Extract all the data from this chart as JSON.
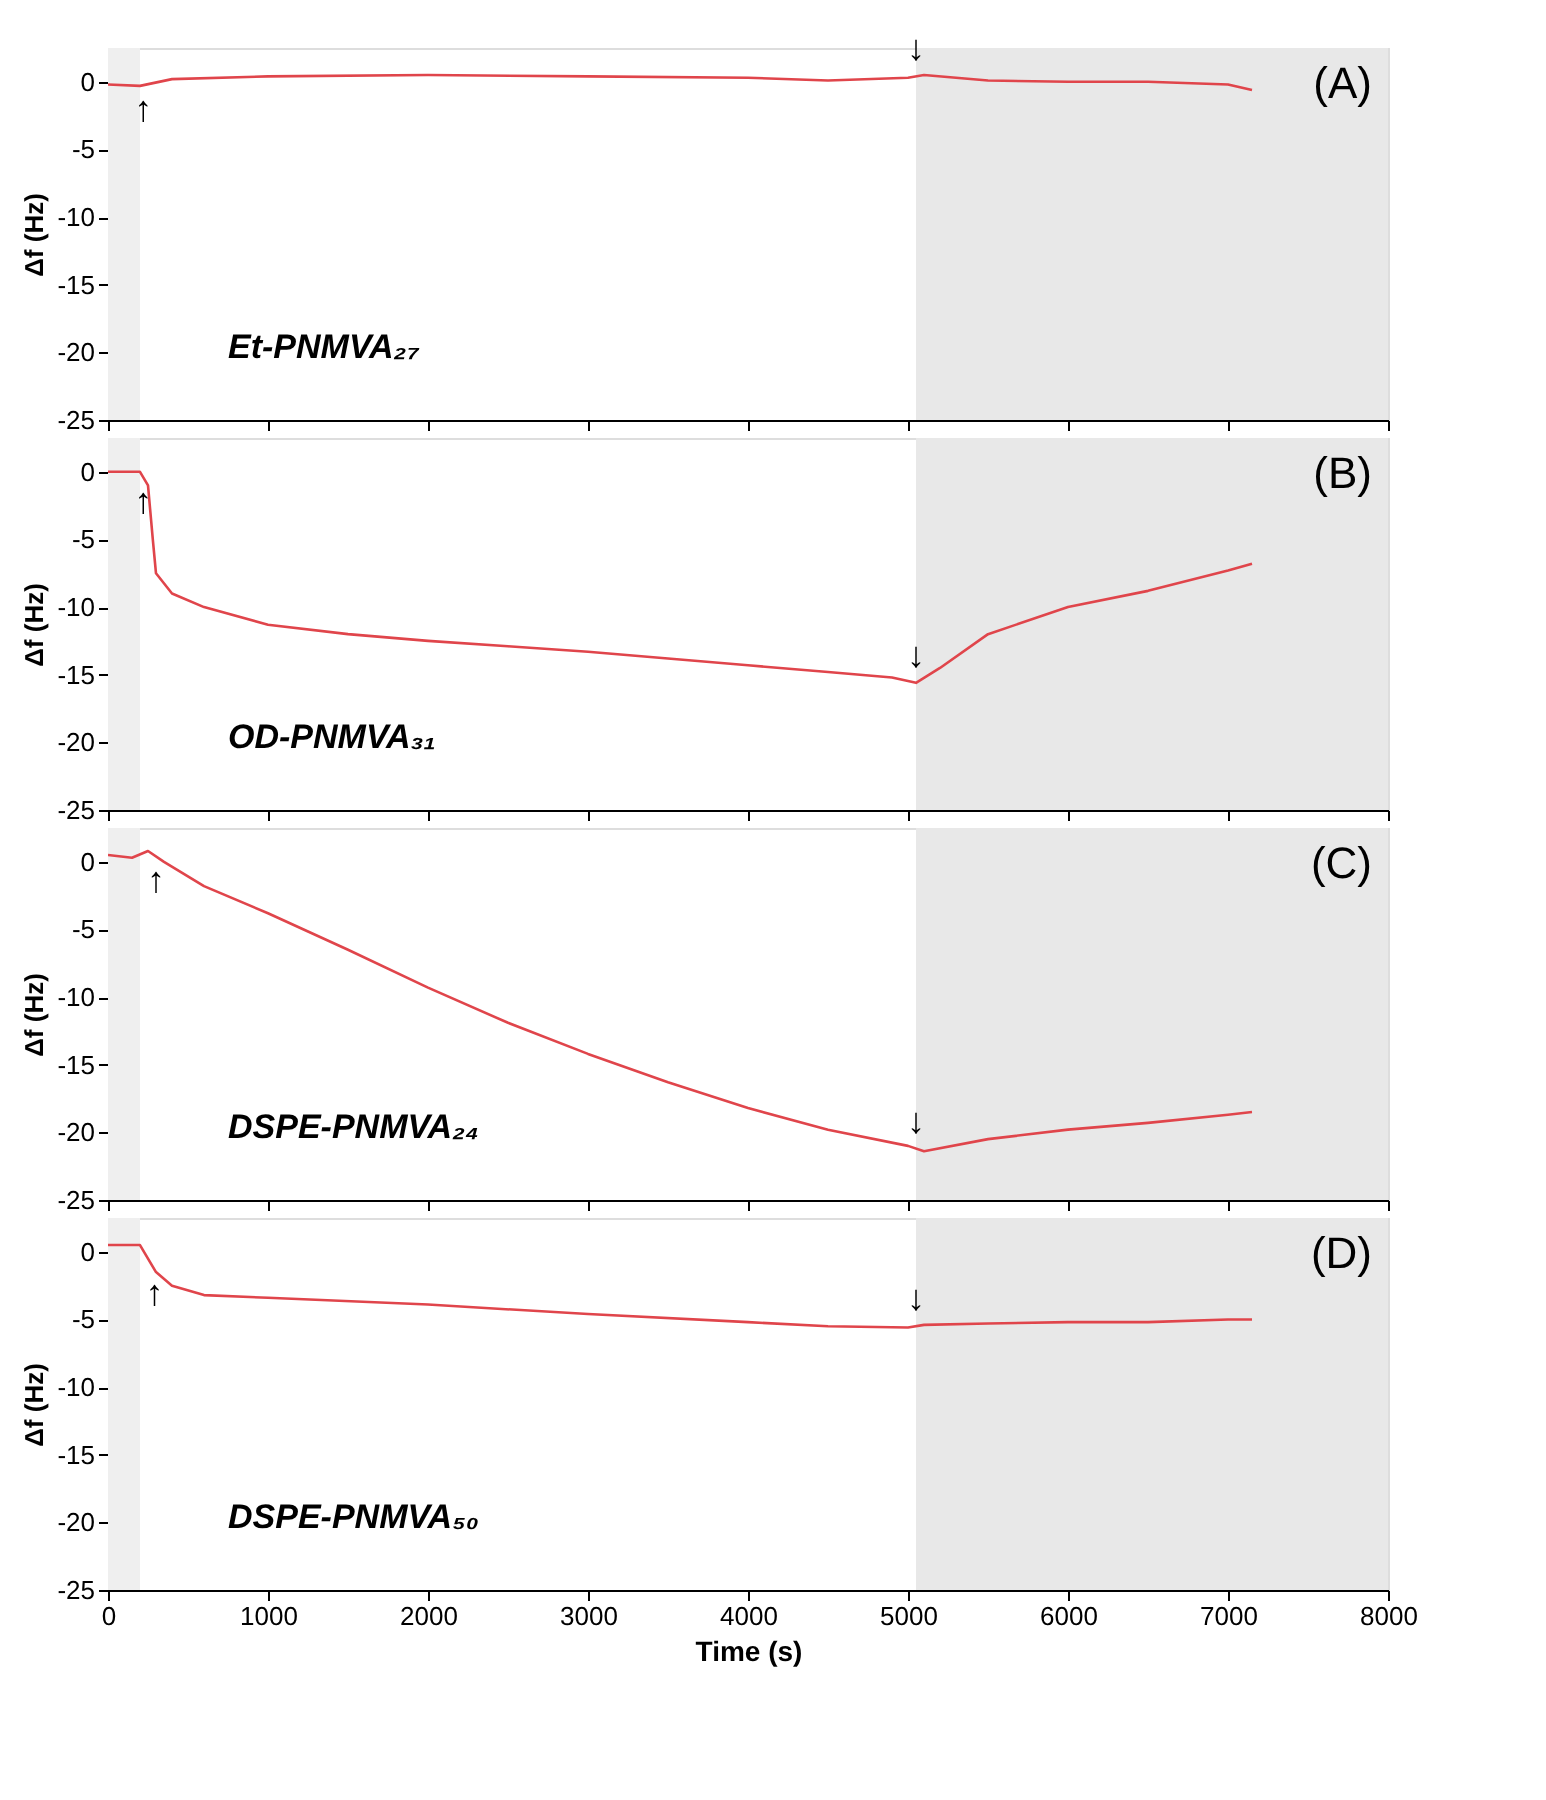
{
  "chart_data": [
    {
      "type": "line",
      "ylabel": "Δf (Hz)",
      "xlim": [
        0,
        8000
      ],
      "xticks": [
        0,
        1000,
        2000,
        3000,
        4000,
        5000,
        6000,
        7000,
        8000
      ],
      "ylim": [
        -25,
        2.5
      ],
      "yticks": [
        -25,
        -20,
        -15,
        -10,
        -5,
        0
      ],
      "tick_labels": "y",
      "grid": false,
      "annotations": [
        "(A)",
        {
          "text": "↑",
          "x": 220,
          "y": -0.25
        },
        {
          "text": "↓",
          "x": 5050,
          "y": 0.4
        }
      ],
      "bands": [
        {
          "axis": "x",
          "from": 0,
          "to": 200,
          "color": "#efefef"
        },
        {
          "axis": "x",
          "from": 5050,
          "to": 8000,
          "color": "#e8e8e8"
        }
      ],
      "series": [
        {
          "name": "Et-PNMVA₂₇",
          "color": "#e0454b",
          "x": [
            0,
            200,
            400,
            1000,
            2000,
            3000,
            4000,
            4500,
            5000,
            5100,
            5500,
            6000,
            6500,
            7000,
            7150
          ],
          "values": [
            -0.2,
            -0.3,
            0.2,
            0.4,
            0.5,
            0.4,
            0.3,
            0.1,
            0.3,
            0.5,
            0.1,
            0,
            0,
            -0.2,
            -0.6
          ]
        }
      ]
    },
    {
      "type": "line",
      "ylabel": "Δf (Hz)",
      "xlim": [
        0,
        8000
      ],
      "xticks": [
        0,
        1000,
        2000,
        3000,
        4000,
        5000,
        6000,
        7000,
        8000
      ],
      "ylim": [
        -25,
        2.5
      ],
      "yticks": [
        -25,
        -20,
        -15,
        -10,
        -5,
        0
      ],
      "tick_labels": "y",
      "grid": false,
      "annotations": [
        "(B)",
        {
          "text": "↑",
          "x": 220,
          "y": -0.4
        },
        {
          "text": "↓",
          "x": 5050,
          "y": -15.6
        }
      ],
      "bands": [
        {
          "axis": "x",
          "from": 0,
          "to": 200,
          "color": "#efefef"
        },
        {
          "axis": "x",
          "from": 5050,
          "to": 8000,
          "color": "#e8e8e8"
        }
      ],
      "series": [
        {
          "name": "OD-PNMVA₃₁",
          "color": "#e0454b",
          "x": [
            0,
            200,
            250,
            280,
            300,
            400,
            600,
            1000,
            1500,
            2000,
            2500,
            3000,
            3500,
            4000,
            4500,
            4900,
            5050,
            5200,
            5500,
            6000,
            6500,
            7000,
            7150
          ],
          "values": [
            0,
            0,
            -1,
            -5,
            -7.5,
            -9,
            -10,
            -11.3,
            -12,
            -12.5,
            -12.9,
            -13.3,
            -13.8,
            -14.3,
            -14.8,
            -15.2,
            -15.6,
            -14.5,
            -12,
            -10,
            -8.8,
            -7.3,
            -6.8
          ]
        }
      ]
    },
    {
      "type": "line",
      "ylabel": "Δf (Hz)",
      "xlim": [
        0,
        8000
      ],
      "xticks": [
        0,
        1000,
        2000,
        3000,
        4000,
        5000,
        6000,
        7000,
        8000
      ],
      "ylim": [
        -25,
        2.5
      ],
      "yticks": [
        -25,
        -20,
        -15,
        -10,
        -5,
        0
      ],
      "tick_labels": "y",
      "grid": false,
      "annotations": [
        "(C)",
        {
          "text": "↑",
          "x": 300,
          "y": 0.4
        },
        {
          "text": "↓",
          "x": 5050,
          "y": -21.2
        }
      ],
      "bands": [
        {
          "axis": "x",
          "from": 0,
          "to": 200,
          "color": "#efefef"
        },
        {
          "axis": "x",
          "from": 5050,
          "to": 8000,
          "color": "#e8e8e8"
        }
      ],
      "series": [
        {
          "name": "DSPE-PNMVA₂₄",
          "color": "#e0454b",
          "x": [
            0,
            150,
            250,
            350,
            600,
            1000,
            1500,
            2000,
            2500,
            3000,
            3500,
            4000,
            4500,
            5000,
            5100,
            5500,
            6000,
            6500,
            7000,
            7150
          ],
          "values": [
            0.5,
            0.3,
            0.8,
            0,
            -1.8,
            -3.8,
            -6.5,
            -9.3,
            -11.9,
            -14.2,
            -16.3,
            -18.2,
            -19.8,
            -21,
            -21.4,
            -20.5,
            -19.8,
            -19.3,
            -18.7,
            -18.5
          ]
        }
      ]
    },
    {
      "type": "line",
      "ylabel": "Δf (Hz)",
      "xlabel": "Time (s)",
      "xlim": [
        0,
        8000
      ],
      "xticks": [
        0,
        1000,
        2000,
        3000,
        4000,
        5000,
        6000,
        7000,
        8000
      ],
      "ylim": [
        -25,
        2.5
      ],
      "yticks": [
        -25,
        -20,
        -15,
        -10,
        -5,
        0
      ],
      "grid": false,
      "annotations": [
        "(D)",
        {
          "text": "↑",
          "x": 290,
          "y": -1.3
        },
        {
          "text": "↓",
          "x": 5050,
          "y": -5.5
        }
      ],
      "bands": [
        {
          "axis": "x",
          "from": 0,
          "to": 200,
          "color": "#efefef"
        },
        {
          "axis": "x",
          "from": 5050,
          "to": 8000,
          "color": "#e8e8e8"
        }
      ],
      "series": [
        {
          "name": "DSPE-PNMVA₅₀",
          "color": "#e0454b",
          "x": [
            0,
            200,
            300,
            400,
            600,
            1000,
            2000,
            3000,
            4000,
            4500,
            5000,
            5100,
            5500,
            6000,
            6500,
            7000,
            7150
          ],
          "values": [
            0.5,
            0.5,
            -1.5,
            -2.5,
            -3.2,
            -3.4,
            -3.9,
            -4.6,
            -5.2,
            -5.5,
            -5.6,
            -5.4,
            -5.3,
            -5.2,
            -5.2,
            -5.0,
            -5.0
          ]
        }
      ]
    }
  ]
}
